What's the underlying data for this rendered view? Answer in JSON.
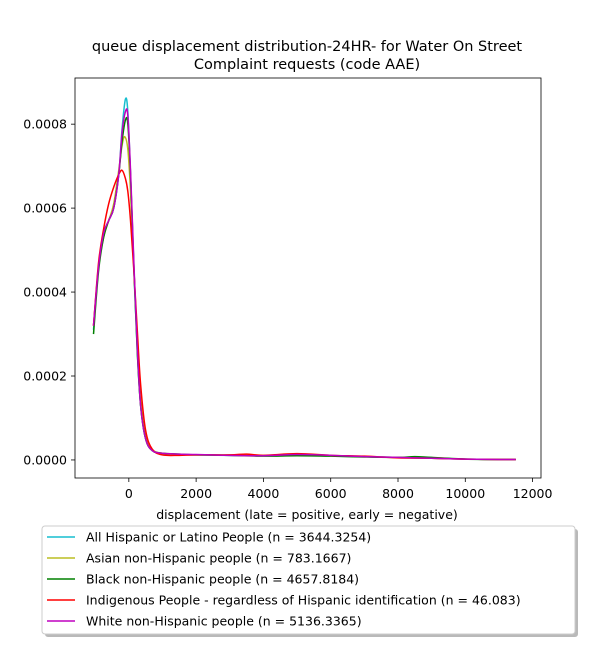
{
  "chart_data": {
    "type": "line",
    "title_lines": [
      "queue displacement distribution-24HR-  for Water On Street",
      "Complaint  requests (code AAE)"
    ],
    "xlabel": "displacement (late = positive, early = negative)",
    "ylabel": "",
    "xlim": [
      -1600,
      12250
    ],
    "ylim": [
      -4.3e-05,
      0.00091
    ],
    "x_ticks": [
      0,
      2000,
      4000,
      6000,
      8000,
      10000,
      12000
    ],
    "y_ticks": [
      0.0,
      0.0002,
      0.0004,
      0.0006,
      0.0008
    ],
    "x_tick_labels": [
      "0",
      "2000",
      "4000",
      "6000",
      "8000",
      "10000",
      "12000"
    ],
    "y_tick_labels": [
      "0.0000",
      "0.0002",
      "0.0004",
      "0.0006",
      "0.0008"
    ],
    "grid": false,
    "legend_position": "bottom",
    "series": [
      {
        "name": "All Hispanic or Latino People (n = 3644.3254)",
        "color": "#17becf",
        "points": [
          [
            -1050,
            0.00031
          ],
          [
            -900,
            0.00046
          ],
          [
            -750,
            0.00054
          ],
          [
            -600,
            0.00057
          ],
          [
            -450,
            0.0006
          ],
          [
            -300,
            0.00068
          ],
          [
            -200,
            0.00079
          ],
          [
            -100,
            0.00086
          ],
          [
            -30,
            0.00083
          ],
          [
            50,
            0.00068
          ],
          [
            150,
            0.00045
          ],
          [
            250,
            0.00026
          ],
          [
            350,
            0.00013
          ],
          [
            500,
            5e-05
          ],
          [
            700,
            2.2e-05
          ],
          [
            1000,
            1.5e-05
          ],
          [
            1500,
            1.3e-05
          ],
          [
            2000,
            1.2e-05
          ],
          [
            3000,
            1.1e-05
          ],
          [
            4000,
            1e-05
          ],
          [
            5000,
            1.1e-05
          ],
          [
            6000,
            1e-05
          ],
          [
            7000,
            8e-06
          ],
          [
            8000,
            6e-06
          ],
          [
            9000,
            4e-06
          ],
          [
            10000,
            2e-06
          ],
          [
            11000,
            1e-06
          ],
          [
            11500,
            1e-06
          ]
        ]
      },
      {
        "name": "Asian non-Hispanic people (n = 783.1667)",
        "color": "#bcbd22",
        "points": [
          [
            -1050,
            0.00032
          ],
          [
            -900,
            0.00046
          ],
          [
            -750,
            0.00053
          ],
          [
            -600,
            0.00057
          ],
          [
            -450,
            0.00061
          ],
          [
            -300,
            0.00069
          ],
          [
            -200,
            0.00075
          ],
          [
            -120,
            0.00077
          ],
          [
            -30,
            0.00074
          ],
          [
            50,
            0.00064
          ],
          [
            150,
            0.00046
          ],
          [
            250,
            0.00028
          ],
          [
            350,
            0.00015
          ],
          [
            500,
            6e-05
          ],
          [
            700,
            2.5e-05
          ],
          [
            1000,
            1.6e-05
          ],
          [
            1500,
            1.3e-05
          ],
          [
            2000,
            1.2e-05
          ],
          [
            3000,
            1.2e-05
          ],
          [
            4000,
            1.1e-05
          ],
          [
            5000,
            1.2e-05
          ],
          [
            6000,
            1e-05
          ],
          [
            7000,
            8e-06
          ],
          [
            8000,
            6e-06
          ],
          [
            9000,
            4e-06
          ],
          [
            10000,
            2e-06
          ],
          [
            11000,
            1e-06
          ],
          [
            11500,
            1e-06
          ]
        ]
      },
      {
        "name": "Black non-Hispanic people (n = 4657.8184)",
        "color": "#008000",
        "points": [
          [
            -1050,
            0.0003
          ],
          [
            -900,
            0.00045
          ],
          [
            -750,
            0.00053
          ],
          [
            -600,
            0.00057
          ],
          [
            -450,
            0.0006
          ],
          [
            -300,
            0.00068
          ],
          [
            -200,
            0.00076
          ],
          [
            -100,
            0.00081
          ],
          [
            -30,
            0.0008
          ],
          [
            50,
            0.00068
          ],
          [
            150,
            0.00046
          ],
          [
            250,
            0.00026
          ],
          [
            350,
            0.00013
          ],
          [
            500,
            5e-05
          ],
          [
            700,
            2.2e-05
          ],
          [
            1000,
            1.6e-05
          ],
          [
            1500,
            1.4e-05
          ],
          [
            2000,
            1.2e-05
          ],
          [
            3000,
            1.1e-05
          ],
          [
            4000,
            9e-06
          ],
          [
            5000,
            1e-05
          ],
          [
            6000,
            9e-06
          ],
          [
            7000,
            7e-06
          ],
          [
            8000,
            6e-06
          ],
          [
            8500,
            8e-06
          ],
          [
            9000,
            6e-06
          ],
          [
            10000,
            2e-06
          ],
          [
            11000,
            1e-06
          ],
          [
            11500,
            1e-06
          ]
        ]
      },
      {
        "name": "Indigenous People - regardless of Hispanic identification (n = 46.083)",
        "color": "#ff0000",
        "points": [
          [
            -1050,
            0.00032
          ],
          [
            -900,
            0.00047
          ],
          [
            -750,
            0.00055
          ],
          [
            -600,
            0.00061
          ],
          [
            -450,
            0.00065
          ],
          [
            -300,
            0.00068
          ],
          [
            -200,
            0.00069
          ],
          [
            -100,
            0.00067
          ],
          [
            -30,
            0.00064
          ],
          [
            50,
            0.00057
          ],
          [
            150,
            0.00045
          ],
          [
            250,
            0.00031
          ],
          [
            350,
            0.00018
          ],
          [
            500,
            7e-05
          ],
          [
            700,
            2.5e-05
          ],
          [
            1000,
            1.2e-05
          ],
          [
            1500,
            1.1e-05
          ],
          [
            2000,
            1.2e-05
          ],
          [
            3000,
            1.2e-05
          ],
          [
            3500,
            1.4e-05
          ],
          [
            4000,
            1.1e-05
          ],
          [
            5000,
            1.5e-05
          ],
          [
            6000,
            1.1e-05
          ],
          [
            7000,
            9e-06
          ],
          [
            8000,
            5e-06
          ],
          [
            9000,
            4e-06
          ],
          [
            10000,
            2e-06
          ],
          [
            11000,
            1e-06
          ],
          [
            11500,
            1e-06
          ]
        ]
      },
      {
        "name": "White non-Hispanic people (n = 5136.3365)",
        "color": "#bf00bf",
        "points": [
          [
            -1050,
            0.00032
          ],
          [
            -900,
            0.00046
          ],
          [
            -750,
            0.00054
          ],
          [
            -600,
            0.00057
          ],
          [
            -450,
            0.0006
          ],
          [
            -300,
            0.00068
          ],
          [
            -200,
            0.00078
          ],
          [
            -100,
            0.00083
          ],
          [
            -30,
            0.00082
          ],
          [
            50,
            0.00069
          ],
          [
            150,
            0.00047
          ],
          [
            250,
            0.00027
          ],
          [
            350,
            0.00013
          ],
          [
            500,
            5e-05
          ],
          [
            700,
            2.2e-05
          ],
          [
            1000,
            1.6e-05
          ],
          [
            1500,
            1.4e-05
          ],
          [
            2000,
            1.3e-05
          ],
          [
            3000,
            1.1e-05
          ],
          [
            4000,
            1e-05
          ],
          [
            5000,
            1.3e-05
          ],
          [
            6000,
            1.1e-05
          ],
          [
            7000,
            8e-06
          ],
          [
            8000,
            6e-06
          ],
          [
            9000,
            4e-06
          ],
          [
            10000,
            2e-06
          ],
          [
            11000,
            1e-06
          ],
          [
            11500,
            1e-06
          ]
        ]
      }
    ]
  }
}
